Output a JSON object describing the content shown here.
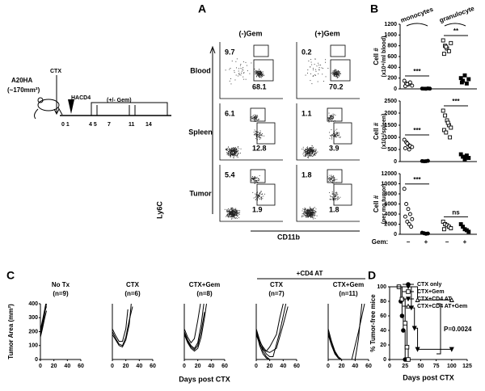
{
  "panel_labels": [
    "A",
    "B",
    "C",
    "D"
  ],
  "schematic": {
    "model": "A20HA",
    "size": "(~170mm²)",
    "ctx": "CTX",
    "hacd4": "HACD4",
    "gem": "(+/- Gem)",
    "days": [
      "0 1",
      "4 5",
      "7",
      "11",
      "14"
    ]
  },
  "flow": {
    "columns": [
      "(-)Gem",
      "(+)Gem"
    ],
    "rows": [
      {
        "label": "Blood",
        "percents": [
          [
            9.7,
            68.1
          ],
          [
            0.2,
            70.2
          ]
        ]
      },
      {
        "label": "Spleen",
        "percents": [
          [
            6.1,
            12.8
          ],
          [
            1.1,
            3.9
          ]
        ]
      },
      {
        "label": "Tumor",
        "percents": [
          [
            5.4,
            1.9
          ],
          [
            1.8,
            1.8
          ]
        ]
      }
    ],
    "y_axis": "Ly6C",
    "x_axis": "CD11b"
  },
  "cell_types": [
    "monocytes",
    "granulocyte"
  ],
  "gem_label": "Gem:",
  "gem_states": [
    "−",
    "+",
    "−",
    "+"
  ],
  "group_label": "+CD4 AT",
  "chart_data": [
    {
      "type": "strip",
      "ylabel": "Cell #",
      "ylabel2": "(x10⁴/ml blood)",
      "ylim": [
        0,
        1200
      ],
      "yticks": [
        0,
        200,
        400,
        600,
        800,
        1000,
        1200
      ],
      "color": "#000",
      "markers": [
        "circle-open",
        "circle",
        "square-open",
        "square"
      ],
      "significance": [
        "***",
        "**"
      ],
      "series": [
        {
          "values": [
            150,
            100,
            80,
            120,
            60,
            50,
            90
          ]
        },
        {
          "values": [
            5,
            3,
            2,
            8,
            4
          ]
        },
        {
          "values": [
            900,
            800,
            750,
            700,
            850,
            650,
            780
          ]
        },
        {
          "values": [
            200,
            150,
            250,
            100,
            180,
            120
          ]
        }
      ]
    },
    {
      "type": "strip",
      "ylabel": "Cell #",
      "ylabel2": "(x10⁴/spleen)",
      "ylim": [
        0,
        2500
      ],
      "yticks": [
        0,
        500,
        1000,
        1500,
        2000,
        2500
      ],
      "color": "#000",
      "markers": [
        "circle-open",
        "circle",
        "square-open",
        "square"
      ],
      "significance": [
        "***",
        "***"
      ],
      "series": [
        {
          "values": [
            900,
            800,
            700,
            650,
            600,
            550,
            750,
            500
          ]
        },
        {
          "values": [
            20,
            10,
            15,
            30
          ]
        },
        {
          "values": [
            2100,
            1900,
            1700,
            1500,
            1400,
            1300,
            1200,
            1600,
            1000
          ]
        },
        {
          "values": [
            300,
            200,
            100,
            250,
            150
          ]
        }
      ]
    },
    {
      "type": "strip",
      "ylabel": "Cell #",
      "ylabel2": "(per mg tumor)",
      "ylim": [
        0,
        12000
      ],
      "yticks": [
        0,
        2000,
        4000,
        6000,
        8000,
        10000,
        12000
      ],
      "color": "#000",
      "markers": [
        "circle-open",
        "circle",
        "square-open",
        "square"
      ],
      "significance": [
        "***",
        "ns"
      ],
      "series": [
        {
          "values": [
            9000,
            6000,
            5000,
            4000,
            3000,
            3500,
            2500,
            2000,
            1500
          ]
        },
        {
          "values": [
            300,
            200,
            100,
            150
          ]
        },
        {
          "values": [
            2500,
            2000,
            1800,
            1500,
            1200,
            1000
          ]
        },
        {
          "values": [
            2000,
            1500,
            1000,
            800,
            500
          ]
        }
      ]
    },
    {
      "type": "line",
      "title": "No Tx",
      "subtitle": "(n=9)",
      "ylabel": "Tumor Area (mm²)",
      "xlim": [
        0,
        60
      ],
      "ylim": [
        0,
        400
      ],
      "xticks": [
        0,
        20,
        40,
        60
      ],
      "yticks": [
        0,
        100,
        200,
        300,
        400
      ],
      "color": "#000",
      "series": [
        {
          "x": [
            0,
            3,
            6,
            9
          ],
          "values": [
            170,
            240,
            320,
            400
          ]
        },
        {
          "x": [
            0,
            3,
            6,
            9
          ],
          "values": [
            190,
            260,
            340,
            380
          ]
        },
        {
          "x": [
            0,
            3,
            6,
            8
          ],
          "values": [
            210,
            280,
            350,
            400
          ]
        },
        {
          "x": [
            0,
            3,
            6,
            9
          ],
          "values": [
            160,
            220,
            290,
            350
          ]
        }
      ]
    },
    {
      "type": "line",
      "title": "CTX",
      "subtitle": "(n=6)",
      "xlim": [
        0,
        60
      ],
      "ylim": [
        0,
        400
      ],
      "xticks": [
        0,
        20,
        40,
        60
      ],
      "color": "#000",
      "series": [
        {
          "x": [
            0,
            5,
            10,
            15,
            20,
            25,
            28
          ],
          "values": [
            180,
            140,
            100,
            90,
            140,
            250,
            400
          ]
        },
        {
          "x": [
            0,
            5,
            10,
            15,
            20,
            25,
            30
          ],
          "values": [
            200,
            150,
            110,
            100,
            160,
            280,
            380
          ]
        },
        {
          "x": [
            0,
            5,
            10,
            15,
            20,
            23
          ],
          "values": [
            220,
            170,
            130,
            130,
            220,
            360
          ]
        }
      ]
    },
    {
      "type": "line",
      "title": "CTX+Gem",
      "subtitle": "(n=8)",
      "xlabel": "Days post CTX",
      "xlim": [
        0,
        60
      ],
      "ylim": [
        0,
        400
      ],
      "xticks": [
        0,
        20,
        40,
        60
      ],
      "color": "#000",
      "series": [
        {
          "x": [
            0,
            5,
            10,
            15,
            20,
            25,
            29
          ],
          "values": [
            200,
            140,
            100,
            80,
            120,
            250,
            400
          ]
        },
        {
          "x": [
            0,
            5,
            10,
            15,
            20,
            25,
            30,
            33
          ],
          "values": [
            180,
            120,
            80,
            60,
            80,
            160,
            300,
            400
          ]
        },
        {
          "x": [
            0,
            5,
            10,
            15,
            20,
            24
          ],
          "values": [
            220,
            160,
            120,
            150,
            280,
            400
          ]
        },
        {
          "x": [
            0,
            5,
            10,
            15,
            20,
            25,
            30
          ],
          "values": [
            190,
            130,
            90,
            70,
            100,
            200,
            340
          ]
        }
      ]
    },
    {
      "type": "line",
      "title": "CTX",
      "subtitle": "(n=7)",
      "xlim": [
        0,
        60
      ],
      "ylim": [
        0,
        400
      ],
      "xticks": [
        0,
        20,
        40,
        60
      ],
      "color": "#000",
      "series": [
        {
          "x": [
            0,
            5,
            10,
            15,
            20,
            30,
            55
          ],
          "values": [
            200,
            120,
            60,
            20,
            0,
            0,
            0
          ]
        },
        {
          "x": [
            0,
            5,
            10,
            15,
            20,
            30,
            35,
            40
          ],
          "values": [
            180,
            110,
            70,
            60,
            90,
            180,
            300,
            400
          ]
        },
        {
          "x": [
            0,
            5,
            10,
            15,
            20,
            25,
            35,
            44
          ],
          "values": [
            220,
            140,
            80,
            40,
            20,
            20,
            200,
            400
          ]
        },
        {
          "x": [
            0,
            5,
            10,
            15,
            20,
            30,
            40,
            47
          ],
          "values": [
            190,
            130,
            90,
            60,
            50,
            80,
            250,
            380
          ]
        },
        {
          "x": [
            0,
            5,
            10,
            15,
            20,
            40,
            55
          ],
          "values": [
            210,
            100,
            40,
            10,
            0,
            0,
            0
          ]
        }
      ]
    },
    {
      "type": "line",
      "title": "CTX+Gem",
      "subtitle": "(n=11)",
      "xlim": [
        0,
        60
      ],
      "ylim": [
        0,
        400
      ],
      "xticks": [
        0,
        20,
        40,
        60
      ],
      "color": "#000",
      "series": [
        {
          "x": [
            0,
            5,
            10,
            15,
            20,
            40,
            60
          ],
          "values": [
            200,
            110,
            50,
            10,
            0,
            0,
            0
          ]
        },
        {
          "x": [
            0,
            5,
            10,
            15,
            20,
            30,
            35,
            45,
            54
          ],
          "values": [
            180,
            100,
            40,
            10,
            0,
            0,
            0,
            200,
            400
          ]
        },
        {
          "x": [
            0,
            5,
            10,
            15,
            20,
            40,
            45,
            50
          ],
          "values": [
            220,
            130,
            60,
            20,
            0,
            0,
            150,
            400
          ]
        }
      ]
    },
    {
      "type": "km",
      "ylabel": "% Tumor-free mice",
      "xlabel": "Days post CTX",
      "annotation": "P=0.0024",
      "xlim": [
        0,
        125
      ],
      "ylim": [
        0,
        100
      ],
      "xticks": [
        0,
        25,
        50,
        75,
        100,
        125
      ],
      "yticks": [
        0,
        20,
        40,
        60,
        80,
        100
      ],
      "color": "#000",
      "series": [
        {
          "name": "CTX only",
          "marker": "circle",
          "x": [
            0,
            15,
            18,
            20,
            22,
            25
          ],
          "values": [
            100,
            100,
            80,
            60,
            40,
            0
          ]
        },
        {
          "name": "CTX+Gem",
          "marker": "square-open",
          "x": [
            0,
            15,
            20,
            25,
            28,
            30
          ],
          "values": [
            100,
            100,
            83,
            50,
            17,
            0
          ]
        },
        {
          "name": "CTX+CD4 AT",
          "marker": "triangle-down",
          "x": [
            0,
            30,
            35,
            40,
            45,
            100
          ],
          "values": [
            100,
            100,
            71,
            43,
            14,
            14
          ]
        },
        {
          "name": "CTX+CD4 AT+Gem",
          "marker": "triangle-open",
          "x": [
            0,
            45,
            100
          ],
          "values": [
            100,
            82,
            82
          ]
        }
      ]
    }
  ]
}
